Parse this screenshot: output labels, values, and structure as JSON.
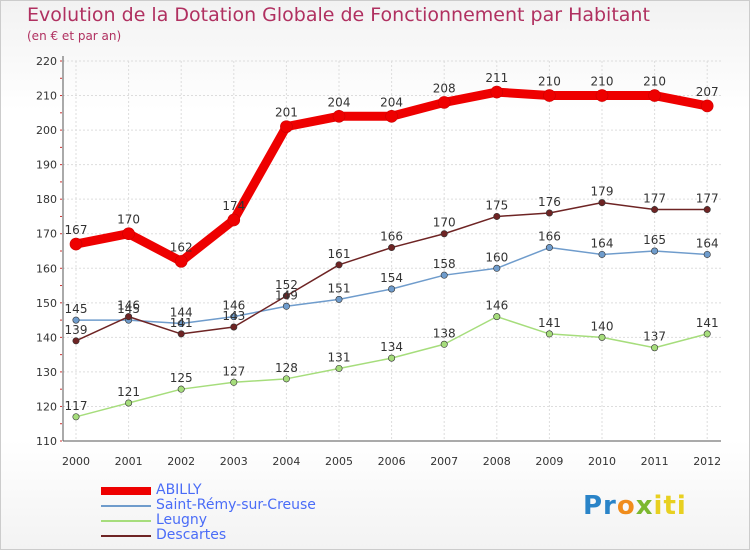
{
  "chart_data": {
    "type": "line",
    "title": "Evolution de la Dotation Globale de Fonctionnement par Habitant",
    "subtitle": "(en € et par an)",
    "xlabel": "",
    "ylabel": "",
    "ylim": [
      110,
      220
    ],
    "yticks": [
      110,
      120,
      130,
      140,
      150,
      160,
      170,
      180,
      190,
      200,
      210,
      220
    ],
    "categories": [
      "2000",
      "2001",
      "2002",
      "2003",
      "2004",
      "2005",
      "2006",
      "2007",
      "2008",
      "2009",
      "2010",
      "2011",
      "2012"
    ],
    "grid": true,
    "legend_position": "bottom-left",
    "series": [
      {
        "name": "ABILLY",
        "color": "#ee0000",
        "values": [
          167,
          170,
          162,
          174,
          201,
          204,
          204,
          208,
          211,
          210,
          210,
          210,
          207
        ]
      },
      {
        "name": "Saint-Rémy-sur-Creuse",
        "color": "#6f9ccc",
        "values": [
          145,
          145,
          144,
          146,
          149,
          151,
          154,
          158,
          160,
          166,
          164,
          165,
          164
        ]
      },
      {
        "name": "Leugny",
        "color": "#a6dd7c",
        "values": [
          117,
          121,
          125,
          127,
          128,
          131,
          134,
          138,
          146,
          141,
          140,
          137,
          141
        ]
      },
      {
        "name": "Descartes",
        "color": "#6e2424",
        "values": [
          139,
          146,
          141,
          143,
          152,
          161,
          166,
          170,
          175,
          176,
          179,
          177,
          177
        ]
      }
    ]
  },
  "branding": {
    "logo_letters": [
      "Pr",
      "o",
      "x",
      "iti"
    ],
    "logo_colors": [
      "#2a84c8",
      "#f08c1c",
      "#7cb82f",
      "#e8d020"
    ]
  }
}
